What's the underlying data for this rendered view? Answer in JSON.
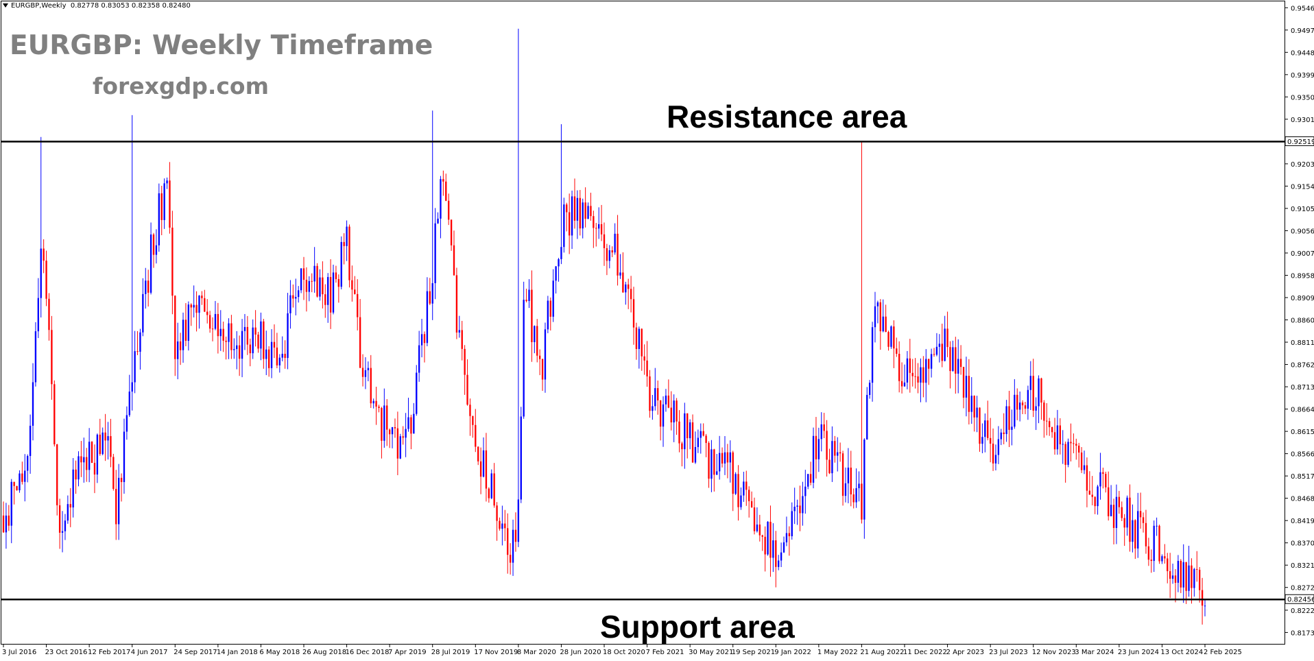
{
  "header": {
    "symbol_info": "EURGBP,Weekly",
    "ohlc": "0.82778 0.83053 0.82358 0.82480"
  },
  "watermark": {
    "title": "EURGBP: Weekly Timeframe",
    "site": "forexgdp.com"
  },
  "annotations": {
    "resistance": "Resistance area",
    "support": "Support area"
  },
  "colors": {
    "bull": "#0000ff",
    "bear": "#ff0000",
    "line": "#000000",
    "text_gray": "#808080"
  },
  "chart_data": {
    "type": "candlestick",
    "series_type": "weekly OHLC candles, blue = bullish, red = bearish",
    "y_ticks": [
      "0.95460",
      "0.94970",
      "0.94480",
      "0.93990",
      "0.93500",
      "0.93010",
      "0.92030",
      "0.91540",
      "0.91050",
      "0.90560",
      "0.90070",
      "0.89580",
      "0.89090",
      "0.88600",
      "0.88110",
      "0.87620",
      "0.87130",
      "0.86640",
      "0.86150",
      "0.85660",
      "0.85170",
      "0.84680",
      "0.84190",
      "0.83700",
      "0.83210",
      "0.82720",
      "0.82220",
      "0.81730"
    ],
    "ylim": [
      0.8148,
      0.956
    ],
    "x_ticks": [
      "3 Jul 2016",
      "23 Oct 2016",
      "12 Feb 2017",
      "4 Jun 2017",
      "24 Sep 2017",
      "14 Jan 2018",
      "6 May 2018",
      "26 Aug 2018",
      "16 Dec 2018",
      "7 Apr 2019",
      "28 Jul 2019",
      "17 Nov 2019",
      "8 Mar 2020",
      "28 Jun 2020",
      "18 Oct 2020",
      "7 Feb 2021",
      "30 May 2021",
      "19 Sep 2021",
      "9 Jan 2022",
      "1 May 2022",
      "21 Aug 2022",
      "11 Dec 2022",
      "2 Apr 2023",
      "23 Jul 2023",
      "12 Nov 2023",
      "3 Mar 2024",
      "23 Jun 2024",
      "13 Oct 2024",
      "2 Feb 2025"
    ],
    "levels": [
      {
        "name": "Resistance area",
        "value": 0.92519,
        "label": "0.92519"
      },
      {
        "name": "Support area",
        "value": 0.82456,
        "label": "0.82456"
      }
    ],
    "waypoints": [
      {
        "date": "3 Jul 2016",
        "close": 0.843
      },
      {
        "date": "28 Aug 2016",
        "close": 0.851
      },
      {
        "date": "9 Oct 2016",
        "close": 0.901
      },
      {
        "date": "23 Oct 2016",
        "close": 0.89
      },
      {
        "date": "27 Nov 2016",
        "close": 0.84
      },
      {
        "date": "1 Jan 2017",
        "close": 0.852
      },
      {
        "date": "12 Feb 2017",
        "close": 0.855
      },
      {
        "date": "26 Mar 2017",
        "close": 0.861
      },
      {
        "date": "23 Apr 2017",
        "close": 0.845
      },
      {
        "date": "4 Jun 2017",
        "close": 0.876
      },
      {
        "date": "6 Aug 2017",
        "close": 0.907
      },
      {
        "date": "3 Sep 2017",
        "close": 0.917
      },
      {
        "date": "24 Sep 2017",
        "close": 0.882
      },
      {
        "date": "26 Nov 2017",
        "close": 0.888
      },
      {
        "date": "14 Jan 2018",
        "close": 0.887
      },
      {
        "date": "4 Mar 2018",
        "close": 0.88
      },
      {
        "date": "6 May 2018",
        "close": 0.883
      },
      {
        "date": "17 Jun 2018",
        "close": 0.876
      },
      {
        "date": "26 Aug 2018",
        "close": 0.898
      },
      {
        "date": "21 Oct 2018",
        "close": 0.889
      },
      {
        "date": "16 Dec 2018",
        "close": 0.903
      },
      {
        "date": "20 Jan 2019",
        "close": 0.877
      },
      {
        "date": "7 Apr 2019",
        "close": 0.859
      },
      {
        "date": "26 May 2019",
        "close": 0.862
      },
      {
        "date": "28 Jul 2019",
        "close": 0.897
      },
      {
        "date": "25 Aug 2019",
        "close": 0.919
      },
      {
        "date": "29 Sep 2019",
        "close": 0.887
      },
      {
        "date": "17 Nov 2019",
        "close": 0.859
      },
      {
        "date": "5 Jan 2020",
        "close": 0.846
      },
      {
        "date": "16 Feb 2020",
        "close": 0.833
      },
      {
        "date": "8 Mar 2020",
        "close": 0.843
      },
      {
        "date": "22 Mar 2020",
        "close": 0.895
      },
      {
        "date": "3 May 2020",
        "close": 0.873
      },
      {
        "date": "28 Jun 2020",
        "close": 0.906
      },
      {
        "date": "6 Sep 2020",
        "close": 0.912
      },
      {
        "date": "18 Oct 2020",
        "close": 0.904
      },
      {
        "date": "13 Dec 2020",
        "close": 0.896
      },
      {
        "date": "7 Feb 2021",
        "close": 0.871
      },
      {
        "date": "30 May 2021",
        "close": 0.859
      },
      {
        "date": "19 Sep 2021",
        "close": 0.852
      },
      {
        "date": "9 Jan 2022",
        "close": 0.834
      },
      {
        "date": "1 May 2022",
        "close": 0.859
      },
      {
        "date": "21 Aug 2022",
        "close": 0.847
      },
      {
        "date": "25 Sep 2022",
        "close": 0.891
      },
      {
        "date": "11 Dec 2022",
        "close": 0.874
      },
      {
        "date": "2 Apr 2023",
        "close": 0.881
      },
      {
        "date": "23 Jul 2023",
        "close": 0.857
      },
      {
        "date": "12 Nov 2023",
        "close": 0.871
      },
      {
        "date": "3 Mar 2024",
        "close": 0.854
      },
      {
        "date": "23 Jun 2024",
        "close": 0.844
      },
      {
        "date": "13 Oct 2024",
        "close": 0.835
      },
      {
        "date": "2 Feb 2025",
        "close": 0.8248
      }
    ]
  }
}
